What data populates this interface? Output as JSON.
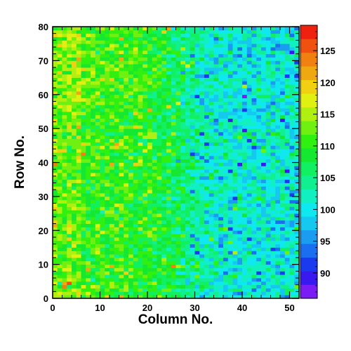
{
  "chart_data": {
    "type": "heatmap",
    "title": "",
    "xlabel": "Column No.",
    "ylabel": "Row No.",
    "xlim": [
      0,
      52
    ],
    "ylim": [
      0,
      80
    ],
    "x_ticks": [
      0,
      10,
      20,
      30,
      40,
      50
    ],
    "x_tick_labels": [
      "0",
      "10",
      "20",
      "30",
      "40",
      "50"
    ],
    "y_ticks": [
      0,
      10,
      20,
      30,
      40,
      50,
      60,
      70,
      80
    ],
    "y_tick_labels": [
      "0",
      "10",
      "20",
      "30",
      "40",
      "50",
      "60",
      "70",
      "80"
    ],
    "n_columns": 52,
    "n_rows": 80,
    "colorbar": {
      "range": [
        86,
        129
      ],
      "ticks": [
        90,
        95,
        100,
        105,
        110,
        115,
        120,
        125
      ],
      "tick_labels": [
        "90",
        "95",
        "100",
        "105",
        "110",
        "115",
        "120",
        "125"
      ],
      "colors": [
        "#7a1cf5",
        "#3a18f0",
        "#1a3af0",
        "#1a6ef0",
        "#1a9cf0",
        "#14c8f0",
        "#10e8f0",
        "#10f0c0",
        "#10f090",
        "#10f060",
        "#14e830",
        "#30f010",
        "#70f010",
        "#b0f010",
        "#e0f010",
        "#f0d010",
        "#f0a810",
        "#f08010",
        "#f05010",
        "#f02010"
      ]
    },
    "z_model": {
      "description": "per-cell pixel value approx.",
      "left_mean": 110,
      "right_mean": 101,
      "transition_column": 27,
      "spread": 4
    },
    "grid": false,
    "legend": "colorbar-right"
  }
}
